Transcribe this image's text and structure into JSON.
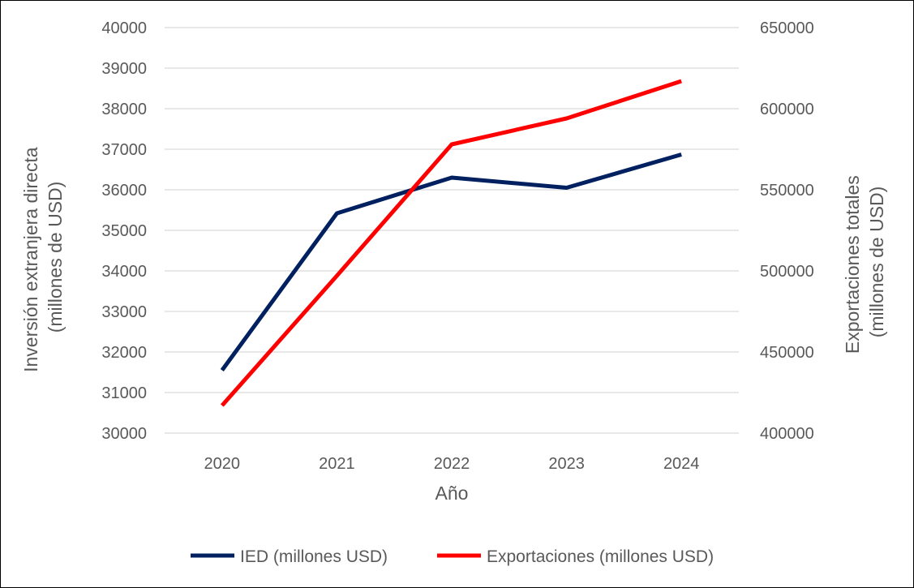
{
  "chart_data": {
    "type": "line",
    "categories": [
      "2020",
      "2021",
      "2022",
      "2023",
      "2024"
    ],
    "xlabel": "Año",
    "ylabel_left_lines": [
      "Inversión extranjera directa",
      "(millones de USD)"
    ],
    "ylabel_right_lines": [
      "Exportaciones totales",
      "(millones de USD)"
    ],
    "ylim_left": [
      30000,
      40000
    ],
    "yticks_left": [
      30000,
      31000,
      32000,
      33000,
      34000,
      35000,
      36000,
      37000,
      38000,
      39000,
      40000
    ],
    "ylim_right": [
      400000,
      650000
    ],
    "yticks_right": [
      400000,
      450000,
      500000,
      550000,
      600000,
      650000
    ],
    "grid": true,
    "legend_position": "bottom",
    "series": [
      {
        "name": "IED (millones USD)",
        "axis": "left",
        "color": "#002060",
        "values": [
          31550,
          35420,
          36300,
          36050,
          36870
        ]
      },
      {
        "name": "Exportaciones (millones USD)",
        "axis": "right",
        "color": "#ff0000",
        "values": [
          417000,
          497000,
          578000,
          594000,
          617000
        ]
      }
    ]
  }
}
